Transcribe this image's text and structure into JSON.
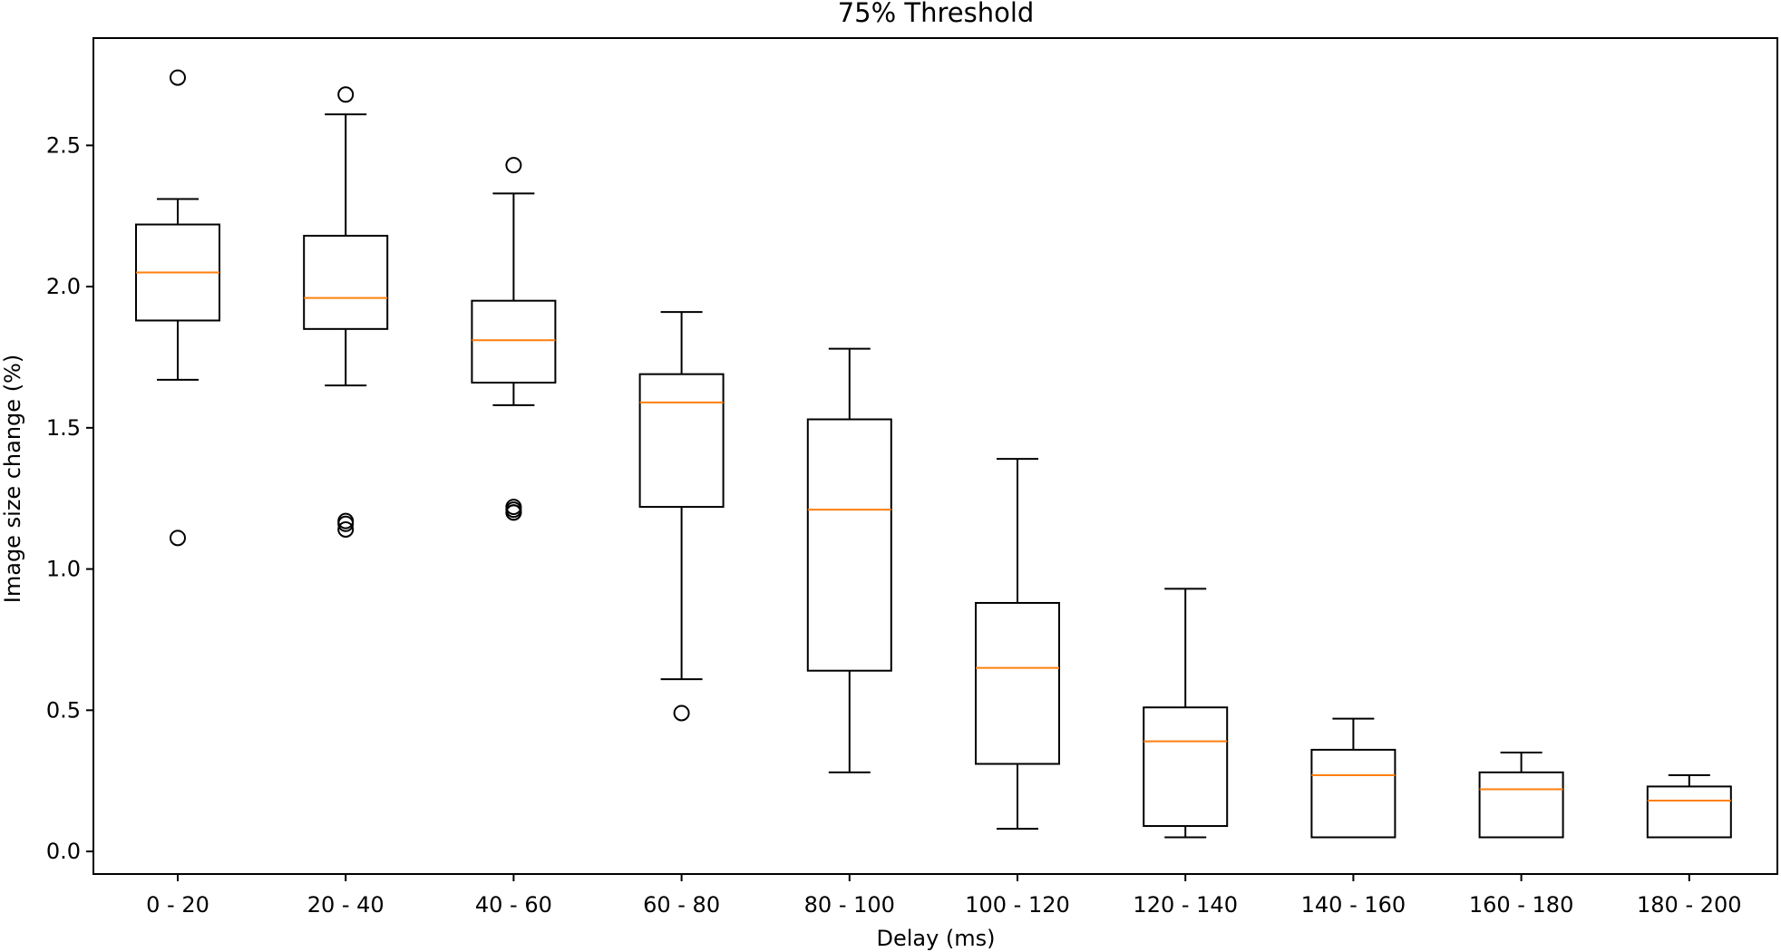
{
  "chart_data": {
    "type": "box",
    "title": "75% Threshold",
    "xlabel": "Delay (ms)",
    "ylabel": "Image size change (%)",
    "ylim": [
      -0.08,
      2.88
    ],
    "yticks": [
      "0.0",
      "0.5",
      "1.0",
      "1.5",
      "2.0",
      "2.5"
    ],
    "grid": false,
    "categories": [
      "0 - 20",
      "20 - 40",
      "40 - 60",
      "60 - 80",
      "80 - 100",
      "100 - 120",
      "120 - 140",
      "140 - 160",
      "160 - 180",
      "180 - 200"
    ],
    "boxes": [
      {
        "whisker_low": 1.67,
        "q1": 1.88,
        "median": 2.05,
        "q3": 2.22,
        "whisker_high": 2.31,
        "outliers": [
          2.74,
          1.11
        ]
      },
      {
        "whisker_low": 1.65,
        "q1": 1.85,
        "median": 1.96,
        "q3": 2.18,
        "whisker_high": 2.61,
        "outliers": [
          2.68,
          1.17,
          1.16,
          1.14
        ]
      },
      {
        "whisker_low": 1.58,
        "q1": 1.66,
        "median": 1.81,
        "q3": 1.95,
        "whisker_high": 2.33,
        "outliers": [
          2.43,
          1.22,
          1.21,
          1.2,
          1.2
        ]
      },
      {
        "whisker_low": 0.61,
        "q1": 1.22,
        "median": 1.59,
        "q3": 1.69,
        "whisker_high": 1.91,
        "outliers": [
          0.49
        ]
      },
      {
        "whisker_low": 0.28,
        "q1": 0.64,
        "median": 1.21,
        "q3": 1.53,
        "whisker_high": 1.78,
        "outliers": []
      },
      {
        "whisker_low": 0.08,
        "q1": 0.31,
        "median": 0.65,
        "q3": 0.88,
        "whisker_high": 1.39,
        "outliers": []
      },
      {
        "whisker_low": 0.05,
        "q1": 0.09,
        "median": 0.39,
        "q3": 0.51,
        "whisker_high": 0.93,
        "outliers": []
      },
      {
        "whisker_low": 0.05,
        "q1": 0.05,
        "median": 0.27,
        "q3": 0.36,
        "whisker_high": 0.47,
        "outliers": []
      },
      {
        "whisker_low": 0.05,
        "q1": 0.05,
        "median": 0.22,
        "q3": 0.28,
        "whisker_high": 0.35,
        "outliers": []
      },
      {
        "whisker_low": 0.05,
        "q1": 0.05,
        "median": 0.18,
        "q3": 0.23,
        "whisker_high": 0.27,
        "outliers": []
      }
    ],
    "colors": {
      "box": "#000000",
      "median": "#ff7f0e"
    }
  }
}
